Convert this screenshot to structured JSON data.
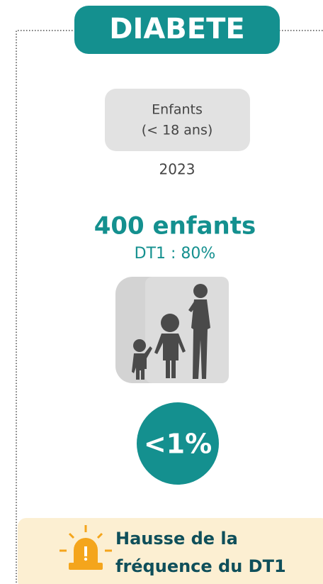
{
  "header": {
    "title": "DIABETE"
  },
  "panel": {
    "group_line1": "Enfants",
    "group_line2": "(< 18 ans)",
    "year": "2023",
    "count": "400 enfants",
    "subtype": "DT1 : 80%",
    "share": "<1%"
  },
  "alert": {
    "line1": "Hausse de la",
    "line2": "fréquence du DT1"
  }
}
